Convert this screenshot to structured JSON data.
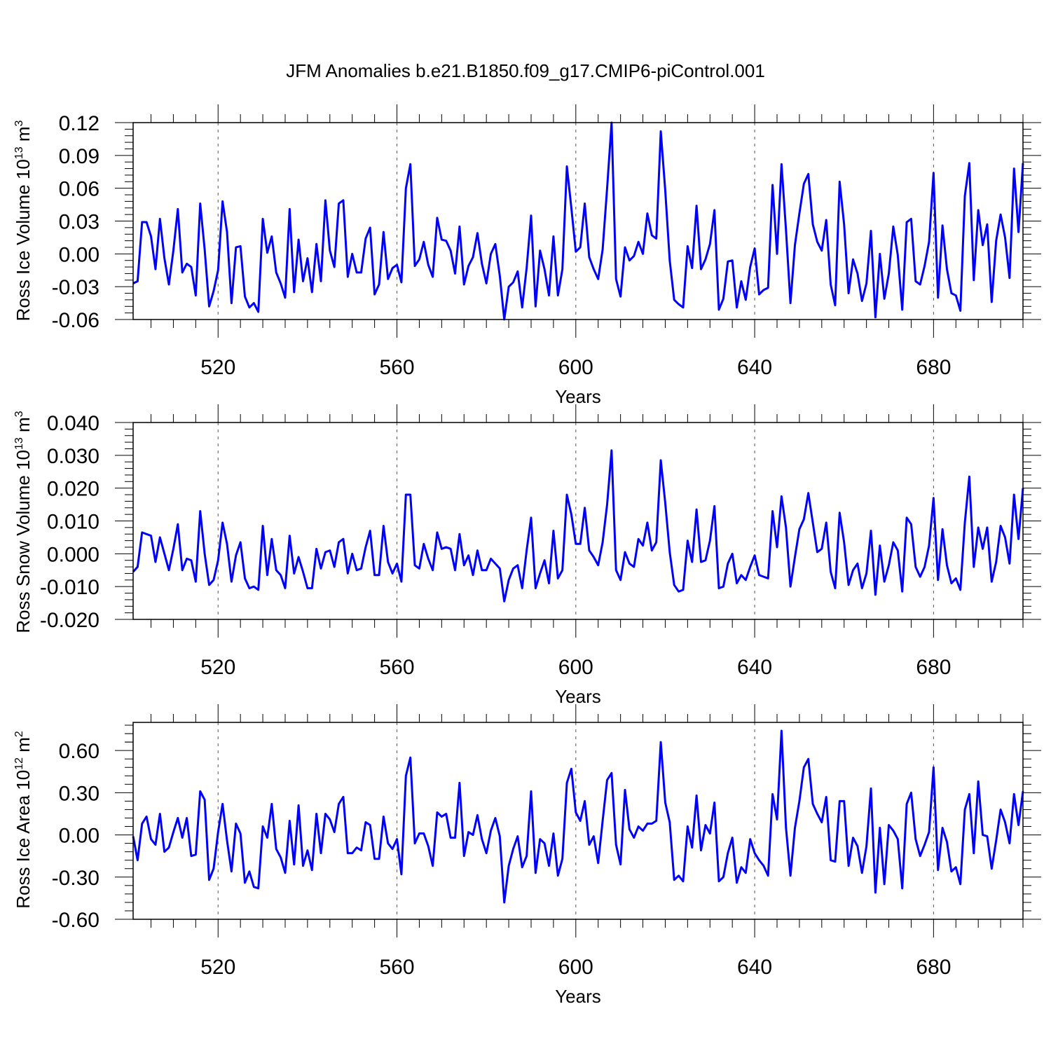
{
  "title": "JFM Anomalies b.e21.B1850.f09_g17.CMIP6-piControl.001",
  "colors": {
    "line": "#0000ff",
    "axis": "#000000",
    "grid": "#555555"
  },
  "chart_data": [
    {
      "type": "line",
      "name": "ice-volume",
      "ylabel_main": "Ross Ice Volume 10",
      "ylabel_exp": "13",
      "ylabel_unit": "m",
      "ylabel_unit_exp": "3",
      "xlabel": "Years",
      "xlim": [
        501,
        700
      ],
      "ylim": [
        -0.06,
        0.12
      ],
      "yticks": [
        -0.06,
        -0.03,
        0.0,
        0.03,
        0.06,
        0.09,
        0.12
      ],
      "ytick_labels": [
        "-0.06",
        "-0.03",
        "0.00",
        "0.03",
        "0.06",
        "0.09",
        "0.12"
      ],
      "xticks": [
        520,
        560,
        600,
        640,
        680
      ],
      "xtick_labels": [
        "520",
        "560",
        "600",
        "640",
        "680"
      ],
      "values": [
        -0.027,
        -0.025,
        0.029,
        0.029,
        0.016,
        -0.014,
        0.032,
        -0.004,
        -0.028,
        0.003,
        0.041,
        -0.017,
        -0.009,
        -0.012,
        -0.038,
        0.046,
        0.004,
        -0.048,
        -0.034,
        -0.015,
        0.048,
        0.02,
        -0.045,
        0.006,
        0.007,
        -0.039,
        -0.049,
        -0.045,
        -0.053,
        0.032,
        0.001,
        0.016,
        -0.017,
        -0.027,
        -0.04,
        0.041,
        -0.035,
        0.013,
        -0.025,
        -0.004,
        -0.035,
        0.009,
        -0.025,
        0.049,
        0.003,
        -0.012,
        0.046,
        0.049,
        -0.021,
        0.0,
        -0.017,
        -0.017,
        0.014,
        0.024,
        -0.037,
        -0.028,
        0.02,
        -0.023,
        -0.013,
        -0.01,
        -0.026,
        0.06,
        0.082,
        -0.011,
        -0.005,
        0.011,
        -0.01,
        -0.021,
        0.033,
        0.013,
        0.012,
        0.003,
        -0.018,
        0.025,
        -0.028,
        -0.011,
        -0.003,
        0.019,
        -0.009,
        -0.027,
        0.0,
        0.009,
        -0.02,
        -0.06,
        -0.03,
        -0.026,
        -0.016,
        -0.049,
        -0.013,
        0.035,
        -0.048,
        0.003,
        -0.014,
        -0.038,
        0.016,
        -0.038,
        -0.014,
        0.08,
        0.042,
        0.002,
        0.006,
        0.046,
        -0.003,
        -0.014,
        -0.023,
        0.004,
        0.06,
        0.12,
        -0.023,
        -0.039,
        0.006,
        -0.006,
        -0.002,
        0.011,
        0.0,
        0.037,
        0.017,
        0.014,
        0.112,
        0.058,
        -0.006,
        -0.042,
        -0.046,
        -0.049,
        0.007,
        -0.013,
        0.044,
        -0.014,
        -0.005,
        0.009,
        0.04,
        -0.051,
        -0.041,
        -0.007,
        -0.006,
        -0.049,
        -0.025,
        -0.042,
        -0.012,
        0.005,
        -0.037,
        -0.033,
        -0.031,
        0.063,
        0.0,
        0.082,
        0.022,
        -0.045,
        0.008,
        0.037,
        0.064,
        0.073,
        0.027,
        0.011,
        0.003,
        0.031,
        -0.028,
        -0.047,
        0.066,
        0.027,
        -0.036,
        -0.005,
        -0.018,
        -0.043,
        -0.027,
        0.021,
        -0.058,
        0.0,
        -0.041,
        -0.018,
        0.025,
        -0.001,
        -0.051,
        0.029,
        0.032,
        -0.025,
        -0.028,
        -0.011,
        0.011,
        0.074,
        -0.04,
        0.026,
        -0.014,
        -0.036,
        -0.038,
        -0.052,
        0.053,
        0.083,
        -0.024,
        0.04,
        0.008,
        0.027,
        -0.044,
        0.012,
        0.036,
        0.015,
        -0.022,
        0.078,
        0.02,
        0.083
      ]
    },
    {
      "type": "line",
      "name": "snow-volume",
      "ylabel_main": "Ross Snow Volume 10",
      "ylabel_exp": "13",
      "ylabel_unit": "m",
      "ylabel_unit_exp": "3",
      "xlabel": "Years",
      "xlim": [
        501,
        700
      ],
      "ylim": [
        -0.02,
        0.04
      ],
      "yticks": [
        -0.02,
        -0.01,
        0.0,
        0.01,
        0.02,
        0.03,
        0.04
      ],
      "ytick_labels": [
        "-0.020",
        "-0.010",
        "0.000",
        "0.010",
        "0.020",
        "0.030",
        "0.040"
      ],
      "xticks": [
        520,
        560,
        600,
        640,
        680
      ],
      "xtick_labels": [
        "520",
        "560",
        "600",
        "640",
        "680"
      ],
      "values": [
        -0.0055,
        -0.004,
        0.0065,
        0.006,
        0.0055,
        -0.0025,
        0.005,
        0.0,
        -0.005,
        0.0015,
        0.009,
        -0.005,
        -0.0015,
        -0.002,
        -0.0085,
        0.013,
        0.0,
        -0.0095,
        -0.008,
        -0.002,
        0.0095,
        0.003,
        -0.0085,
        -0.0005,
        0.0035,
        -0.0075,
        -0.0105,
        -0.01,
        -0.011,
        0.0085,
        -0.0065,
        0.0045,
        -0.005,
        -0.0065,
        -0.0105,
        0.0055,
        -0.006,
        -0.001,
        -0.0055,
        -0.0105,
        -0.0105,
        0.0015,
        -0.0045,
        0.0005,
        0.001,
        -0.004,
        0.0035,
        0.0045,
        -0.006,
        0.0,
        -0.005,
        -0.0045,
        0.002,
        0.007,
        -0.0065,
        -0.0065,
        0.0085,
        -0.0025,
        -0.006,
        -0.003,
        -0.0085,
        0.018,
        0.018,
        -0.0035,
        -0.0045,
        0.003,
        -0.0015,
        -0.005,
        0.0065,
        0.0015,
        0.002,
        0.0015,
        -0.005,
        0.006,
        -0.0035,
        -0.0005,
        -0.0065,
        0.001,
        -0.005,
        -0.005,
        -0.0015,
        -0.003,
        -0.0045,
        -0.0145,
        -0.008,
        -0.0045,
        -0.0035,
        -0.0105,
        0.001,
        0.011,
        -0.0105,
        -0.006,
        -0.002,
        -0.009,
        0.007,
        -0.0075,
        -0.005,
        0.018,
        0.012,
        0.003,
        0.003,
        0.014,
        0.001,
        -0.001,
        -0.0035,
        0.0035,
        0.015,
        0.0315,
        -0.005,
        -0.008,
        0.0005,
        -0.003,
        -0.004,
        0.0045,
        0.0025,
        0.0095,
        0.001,
        0.0035,
        0.0285,
        0.0155,
        0.0005,
        -0.0095,
        -0.0115,
        -0.011,
        0.004,
        -0.0025,
        0.0135,
        -0.0025,
        -0.002,
        0.004,
        0.0145,
        -0.0105,
        -0.01,
        -0.003,
        0.0,
        -0.009,
        -0.0065,
        -0.008,
        -0.004,
        -0.0005,
        -0.0065,
        -0.007,
        -0.0075,
        0.013,
        0.002,
        0.0175,
        0.008,
        -0.01,
        -0.001,
        0.0075,
        0.0105,
        0.0185,
        0.0095,
        0.0005,
        0.0015,
        0.0095,
        -0.0055,
        -0.0105,
        0.0125,
        0.0035,
        -0.0095,
        -0.005,
        -0.003,
        -0.0105,
        -0.006,
        0.007,
        -0.0125,
        0.0025,
        -0.0085,
        -0.0035,
        0.0035,
        0.001,
        -0.0115,
        0.011,
        0.009,
        -0.004,
        -0.007,
        -0.004,
        0.0025,
        0.017,
        -0.008,
        0.0075,
        -0.0035,
        -0.009,
        -0.0075,
        -0.011,
        0.0095,
        0.0235,
        -0.004,
        0.008,
        0.0015,
        0.008,
        -0.0085,
        -0.0025,
        0.0085,
        0.005,
        -0.003,
        0.018,
        0.0045,
        0.02
      ]
    },
    {
      "type": "line",
      "name": "ice-area",
      "ylabel_main": "Ross Ice Area 10",
      "ylabel_exp": "12",
      "ylabel_unit": "m",
      "ylabel_unit_exp": "2",
      "xlabel": "Years",
      "xlim": [
        501,
        700
      ],
      "ylim": [
        -0.6,
        0.8
      ],
      "yticks": [
        -0.6,
        -0.3,
        0.0,
        0.3,
        0.6
      ],
      "ytick_labels": [
        "-0.60",
        "-0.30",
        "0.00",
        "0.30",
        "0.60"
      ],
      "xticks": [
        520,
        560,
        600,
        640,
        680
      ],
      "xtick_labels": [
        "520",
        "560",
        "600",
        "640",
        "680"
      ],
      "values": [
        -0.01,
        -0.18,
        0.08,
        0.13,
        -0.03,
        -0.07,
        0.15,
        -0.12,
        -0.09,
        0.02,
        0.12,
        -0.02,
        0.12,
        -0.15,
        -0.14,
        0.31,
        0.25,
        -0.32,
        -0.24,
        0.02,
        0.22,
        -0.04,
        -0.26,
        0.08,
        0.01,
        -0.34,
        -0.26,
        -0.37,
        -0.38,
        0.06,
        -0.02,
        0.22,
        -0.1,
        -0.16,
        -0.27,
        0.1,
        -0.21,
        0.21,
        -0.22,
        -0.11,
        -0.25,
        0.15,
        -0.13,
        0.15,
        0.11,
        0.02,
        0.22,
        0.27,
        -0.13,
        -0.13,
        -0.09,
        -0.11,
        0.09,
        0.07,
        -0.17,
        -0.17,
        0.13,
        -0.06,
        -0.1,
        -0.03,
        -0.28,
        0.42,
        0.55,
        -0.06,
        0.01,
        0.01,
        -0.08,
        -0.22,
        0.16,
        0.13,
        0.15,
        -0.02,
        -0.02,
        0.37,
        -0.15,
        0.02,
        0.0,
        0.14,
        -0.03,
        -0.13,
        0.03,
        0.12,
        -0.01,
        -0.48,
        -0.22,
        -0.1,
        -0.01,
        -0.23,
        -0.15,
        0.31,
        -0.27,
        -0.03,
        -0.06,
        -0.22,
        0.01,
        -0.29,
        -0.17,
        0.37,
        0.47,
        0.16,
        0.1,
        0.24,
        -0.07,
        -0.01,
        -0.2,
        0.1,
        0.39,
        0.44,
        -0.07,
        -0.21,
        0.32,
        0.04,
        -0.02,
        0.06,
        0.03,
        0.08,
        0.08,
        0.1,
        0.66,
        0.23,
        0.09,
        -0.32,
        -0.29,
        -0.33,
        0.06,
        -0.09,
        0.28,
        -0.11,
        0.07,
        0.01,
        0.23,
        -0.33,
        -0.3,
        -0.13,
        -0.02,
        -0.34,
        -0.23,
        -0.27,
        -0.03,
        -0.13,
        -0.18,
        -0.22,
        -0.29,
        0.29,
        0.11,
        0.74,
        0.05,
        -0.29,
        0.05,
        0.24,
        0.48,
        0.54,
        0.22,
        0.15,
        0.09,
        0.27,
        -0.18,
        -0.19,
        0.24,
        0.24,
        -0.22,
        -0.02,
        -0.08,
        -0.27,
        -0.08,
        0.33,
        -0.41,
        0.05,
        -0.35,
        0.07,
        0.03,
        -0.03,
        -0.38,
        0.22,
        0.3,
        -0.03,
        -0.15,
        -0.07,
        0.02,
        0.48,
        -0.25,
        0.05,
        -0.05,
        -0.26,
        -0.23,
        -0.35,
        0.18,
        0.29,
        -0.13,
        0.38,
        0.0,
        -0.01,
        -0.24,
        -0.04,
        0.18,
        0.09,
        -0.06,
        0.29,
        0.07,
        0.31
      ]
    }
  ]
}
